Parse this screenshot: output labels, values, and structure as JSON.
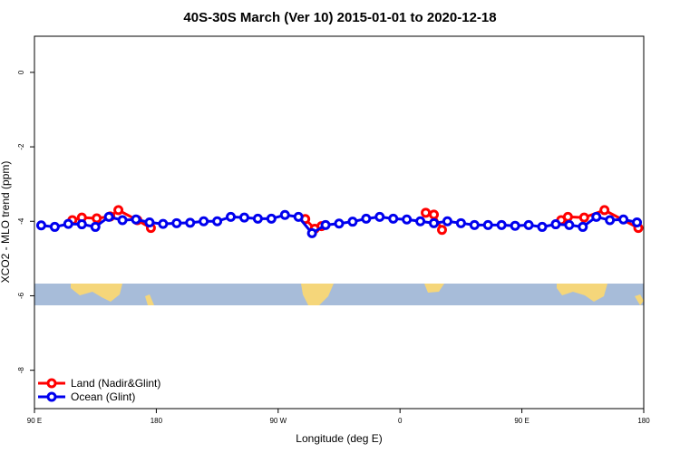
{
  "chart_data": {
    "type": "line",
    "title": "40S-30S March (Ver 10)   2015-01-01 to 2020-12-18",
    "x_label": "Longitude (deg E)",
    "y_label": "XCO2 - MLO trend (ppm)",
    "xlim": [
      90,
      540
    ],
    "ylim": [
      -9.03,
      0.97
    ],
    "xticks": [
      {
        "value": 90,
        "label": "90 E"
      },
      180,
      {
        "value": 270,
        "label": "90 W"
      },
      {
        "value": 360,
        "label": "0"
      },
      {
        "value": 450,
        "label": "90 E"
      },
      {
        "value": 540,
        "label": "180"
      }
    ],
    "yticks": [
      0,
      -2,
      -4,
      -6,
      -8
    ],
    "legend": "bottom-left",
    "series": [
      {
        "name": "Land (Nadir&Glint)",
        "color": "#ff0000",
        "x": [
          118,
          125,
          136,
          146,
          152,
          166,
          176,
          null,
          290,
          297,
          302,
          null,
          379,
          385,
          391,
          null,
          479,
          484,
          496,
          511,
          536
        ],
        "values": [
          -3.97,
          -3.9,
          -3.92,
          -3.87,
          -3.7,
          -3.97,
          -4.18,
          null,
          -3.94,
          -4.2,
          -4.13,
          null,
          -3.77,
          -3.82,
          -4.23,
          null,
          -3.97,
          -3.88,
          -3.9,
          -3.7,
          -4.18
        ]
      },
      {
        "name": "Ocean (Glint)",
        "color": "#0000ee",
        "x": [
          95,
          105,
          115,
          125,
          135,
          145,
          155,
          165,
          175,
          185,
          195,
          205,
          215,
          225,
          235,
          245,
          255,
          265,
          275,
          285,
          295,
          305,
          315,
          325,
          335,
          345,
          355,
          365,
          375,
          385,
          395,
          405,
          415,
          425,
          435,
          445,
          455,
          465,
          475,
          485,
          495,
          505,
          515,
          525,
          535
        ],
        "values": [
          -4.11,
          -4.15,
          -4.07,
          -4.08,
          -4.15,
          -3.88,
          -3.97,
          -3.95,
          -4.03,
          -4.07,
          -4.05,
          -4.04,
          -4.0,
          -4.0,
          -3.88,
          -3.9,
          -3.93,
          -3.93,
          -3.83,
          -3.88,
          -4.32,
          -4.1,
          -4.06,
          -4.01,
          -3.93,
          -3.88,
          -3.93,
          -3.95,
          -4.0,
          -4.05,
          -4.0,
          -4.05,
          -4.1,
          -4.1,
          -4.1,
          -4.12,
          -4.1,
          -4.15,
          -4.08,
          -4.1,
          -4.15,
          -3.88,
          -3.97,
          -3.95,
          -4.03
        ]
      }
    ]
  }
}
